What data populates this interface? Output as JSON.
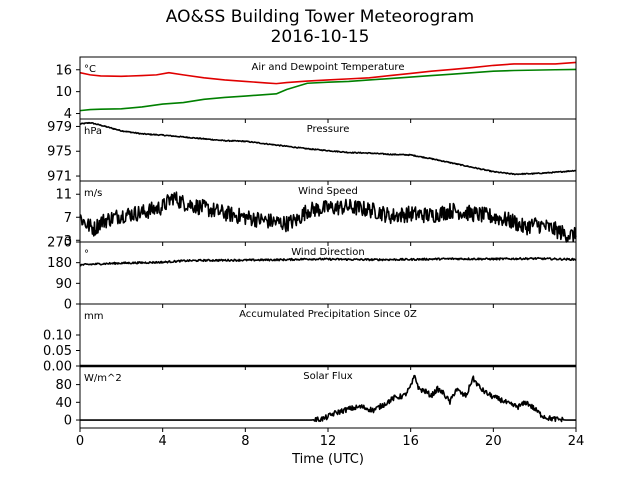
{
  "figure": {
    "title": "AO&SS Building Tower Meteorogram",
    "subtitle": "2016-10-15",
    "xlabel": "Time (UTC)",
    "xticks": [
      "0",
      "4",
      "8",
      "12",
      "16",
      "20",
      "24"
    ]
  },
  "chart_data": [
    {
      "type": "line",
      "title": "Air and Dewpoint Temperature",
      "unit": "°C",
      "xlim": [
        0,
        24
      ],
      "ylim": [
        2.5,
        19.5
      ],
      "yticks": [
        4,
        10,
        16
      ],
      "series": [
        {
          "color": "#e00000",
          "x": [
            0,
            0.5,
            1,
            2,
            3,
            3.7,
            4.3,
            5,
            6,
            7,
            8,
            9,
            9.5,
            10,
            11,
            12,
            13,
            14,
            15,
            16,
            17,
            18,
            19,
            20,
            21,
            22,
            23,
            24
          ],
          "y": [
            15.2,
            14.6,
            14.3,
            14.2,
            14.4,
            14.6,
            15.2,
            14.6,
            13.8,
            13.2,
            12.8,
            12.4,
            12.2,
            12.5,
            12.9,
            13.2,
            13.5,
            13.8,
            14.4,
            15.0,
            15.6,
            16.1,
            16.6,
            17.2,
            17.6,
            17.6,
            17.6,
            18.0
          ]
        },
        {
          "color": "#008000",
          "x": [
            0,
            0.5,
            1,
            2,
            3,
            4,
            5,
            6,
            7,
            8,
            9,
            9.5,
            10,
            11,
            12,
            13,
            14,
            15,
            16,
            17,
            18,
            19,
            20,
            21,
            22,
            23,
            24
          ],
          "y": [
            4.8,
            5.1,
            5.2,
            5.3,
            5.8,
            6.6,
            7.0,
            7.9,
            8.4,
            8.8,
            9.2,
            9.4,
            10.6,
            12.3,
            12.6,
            12.8,
            13.2,
            13.6,
            14.0,
            14.4,
            14.8,
            15.2,
            15.6,
            15.8,
            15.9,
            16.0,
            16.1
          ]
        }
      ]
    },
    {
      "type": "line",
      "title": "Pressure",
      "unit": "hPa",
      "xlim": [
        0,
        24
      ],
      "ylim": [
        970.2,
        980.2
      ],
      "yticks": [
        971,
        975,
        979
      ],
      "series": [
        {
          "color": "#000000",
          "x": [
            0,
            0.5,
            1,
            2,
            3,
            4,
            5,
            6,
            7,
            8,
            9,
            10,
            11,
            12,
            13,
            14,
            15,
            16,
            17,
            18,
            19,
            20,
            21,
            22,
            23,
            24
          ],
          "y": [
            979.4,
            979.6,
            979.2,
            978.3,
            977.8,
            977.6,
            977.3,
            977.0,
            976.7,
            976.6,
            976.2,
            975.8,
            975.4,
            975.1,
            974.8,
            974.7,
            974.5,
            974.4,
            973.8,
            973.1,
            972.4,
            971.7,
            971.3,
            971.4,
            971.6,
            971.9
          ]
        }
      ]
    },
    {
      "type": "line",
      "title": "Wind Speed",
      "unit": "m/s",
      "xlim": [
        0,
        24
      ],
      "ylim": [
        2.7,
        13.3
      ],
      "yticks": [
        3,
        7,
        11
      ],
      "series": [
        {
          "color": "#000000",
          "x": [
            0,
            0.3,
            0.7,
            1,
            2,
            3,
            4,
            4.5,
            5,
            6,
            7,
            8,
            9,
            10,
            10.5,
            11,
            12,
            13,
            14,
            14.5,
            15,
            16,
            17,
            18,
            19,
            20,
            21,
            21.5,
            22,
            22.5,
            23,
            23.5,
            24
          ],
          "y": [
            7,
            5.8,
            5,
            6.2,
            7.4,
            7.8,
            8.8,
            10.5,
            9.5,
            8.6,
            7.7,
            7.0,
            6.4,
            5.9,
            6.5,
            8.2,
            8.6,
            8.8,
            8.3,
            7.9,
            7.2,
            7.6,
            7.3,
            8.2,
            7.6,
            7.1,
            6.2,
            5.2,
            5.8,
            5.4,
            4.8,
            4.0,
            3.8
          ]
        }
      ]
    },
    {
      "type": "line",
      "title": "Wind Direction",
      "unit": "°",
      "xlim": [
        0,
        24
      ],
      "ylim": [
        0,
        270
      ],
      "yticks": [
        0,
        90,
        180,
        270
      ],
      "series": [
        {
          "color": "#000000",
          "x": [
            0,
            1,
            2,
            3,
            4,
            5,
            6,
            8,
            10,
            11,
            12,
            14,
            16,
            18,
            20,
            22,
            24
          ],
          "y": [
            170,
            175,
            178,
            180,
            182,
            188,
            190,
            191,
            193,
            196,
            195,
            193,
            194,
            197,
            196,
            198,
            194
          ]
        }
      ]
    },
    {
      "type": "line",
      "title": "Accumulated Precipitation Since 0Z",
      "unit": "mm",
      "xlim": [
        0,
        24
      ],
      "ylim": [
        0,
        0.2
      ],
      "yticks": [
        0.0,
        0.05,
        0.1
      ],
      "series": [
        {
          "color": "#000000",
          "x": [
            0,
            24
          ],
          "y": [
            0,
            0
          ]
        }
      ]
    },
    {
      "type": "line",
      "title": "Solar Flux",
      "unit": "W/m^2",
      "xlim": [
        0,
        24
      ],
      "ylim": [
        -18,
        122
      ],
      "yticks": [
        0,
        40,
        80
      ],
      "series": [
        {
          "color": "#000000",
          "x": [
            0,
            11.2,
            11.8,
            12.3,
            13,
            13.6,
            14.2,
            14.7,
            15.2,
            15.7,
            16,
            16.2,
            16.4,
            16.7,
            17,
            17.3,
            17.6,
            17.9,
            18.2,
            18.5,
            18.7,
            19,
            19.4,
            19.7,
            20,
            20.4,
            20.8,
            21.2,
            21.6,
            22,
            22.3,
            22.6,
            23,
            23.5,
            24
          ],
          "y": [
            0,
            0,
            3,
            15,
            25,
            30,
            22,
            35,
            50,
            55,
            75,
            100,
            70,
            65,
            55,
            70,
            60,
            40,
            70,
            58,
            55,
            95,
            70,
            60,
            52,
            45,
            35,
            30,
            40,
            25,
            12,
            5,
            2,
            0,
            0
          ]
        }
      ]
    }
  ]
}
